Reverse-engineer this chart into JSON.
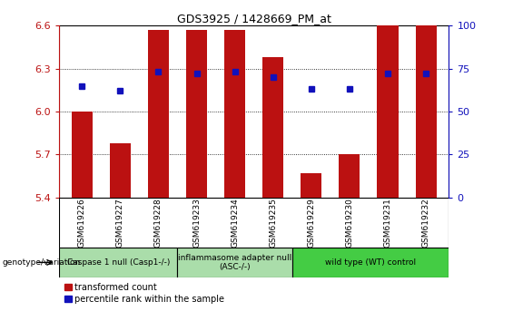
{
  "title": "GDS3925 / 1428669_PM_at",
  "samples": [
    "GSM619226",
    "GSM619227",
    "GSM619228",
    "GSM619233",
    "GSM619234",
    "GSM619235",
    "GSM619229",
    "GSM619230",
    "GSM619231",
    "GSM619232"
  ],
  "red_values": [
    6.0,
    5.78,
    6.57,
    6.57,
    6.57,
    6.38,
    5.57,
    5.7,
    6.6,
    6.6
  ],
  "blue_values": [
    65,
    62,
    73,
    72,
    73,
    70,
    63,
    63,
    72,
    72
  ],
  "ylim": [
    5.4,
    6.6
  ],
  "yticks": [
    5.4,
    5.7,
    6.0,
    6.3,
    6.6
  ],
  "y2lim": [
    0,
    100
  ],
  "y2ticks": [
    0,
    25,
    50,
    75,
    100
  ],
  "red_color": "#BB1111",
  "blue_color": "#1111BB",
  "bar_width": 0.55,
  "bg_color": "#FFFFFF",
  "group_box_color": "#C8C8C8",
  "group_spans": [
    {
      "start": 0,
      "end": 3,
      "label": "Caspase 1 null (Casp1-/-)",
      "color": "#AADDAA"
    },
    {
      "start": 3,
      "end": 6,
      "label": "inflammasome adapter null\n(ASC-/-)",
      "color": "#AADDAA"
    },
    {
      "start": 6,
      "end": 10,
      "label": "wild type (WT) control",
      "color": "#44CC44"
    }
  ]
}
